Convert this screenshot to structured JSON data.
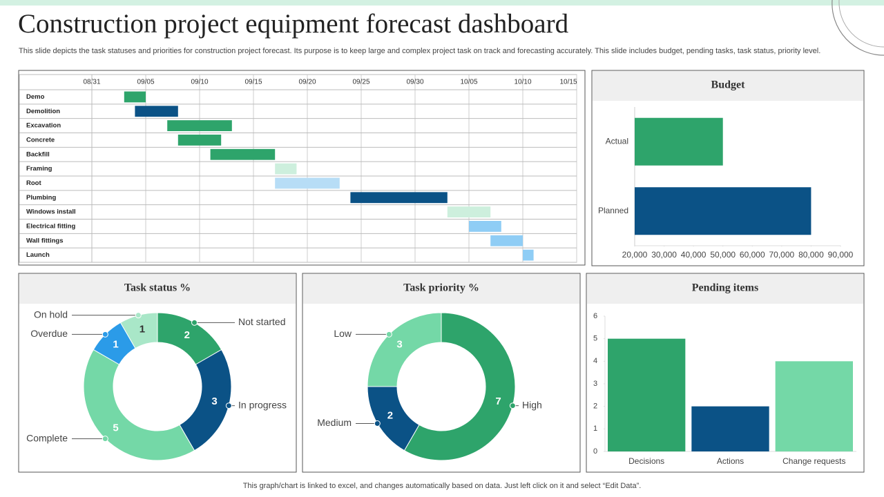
{
  "header": {
    "title": "Construction project equipment forecast dashboard",
    "description": "This slide depicts the task statuses and priorities for construction project forecast. Its purpose is to keep large and complex project task on track and forecasting accurately. This slide includes budget, pending tasks, task status, priority level."
  },
  "footer": "This graph/chart is linked to excel,  and changes automatically based on data. Just left click on it and select “Edit Data”.",
  "chart_data": [
    {
      "type": "gantt",
      "xlim": [
        "08/31",
        "10/15"
      ],
      "xticks": [
        "08/31",
        "09/05",
        "09/10",
        "09/15",
        "09/20",
        "09/25",
        "09/30",
        "10/05",
        "10/10",
        "10/15"
      ],
      "grid": true,
      "tasks": [
        {
          "name": "Demo",
          "start": "09/03",
          "end": "09/05",
          "color": "#2ea46b"
        },
        {
          "name": "Demolition",
          "start": "09/04",
          "end": "09/08",
          "color": "#0b5286"
        },
        {
          "name": "Excavation",
          "start": "09/07",
          "end": "09/13",
          "color": "#2ea46b"
        },
        {
          "name": "Concrete",
          "start": "09/08",
          "end": "09/12",
          "color": "#2ea46b"
        },
        {
          "name": "Backfill",
          "start": "09/11",
          "end": "09/17",
          "color": "#2ea46b"
        },
        {
          "name": "Framing",
          "start": "09/17",
          "end": "09/19",
          "color": "#cdefdd"
        },
        {
          "name": "Root",
          "start": "09/17",
          "end": "09/23",
          "color": "#b7ddf6"
        },
        {
          "name": "Plumbing",
          "start": "09/24",
          "end": "10/03",
          "color": "#0b5286"
        },
        {
          "name": "Windows install",
          "start": "10/03",
          "end": "10/07",
          "color": "#cdefdd"
        },
        {
          "name": "Electrical fitting",
          "start": "10/05",
          "end": "10/08",
          "color": "#8fcdf5"
        },
        {
          "name": "Wall fittings",
          "start": "10/07",
          "end": "10/10",
          "color": "#8fcdf5"
        },
        {
          "name": "Launch",
          "start": "10/10",
          "end": "10/11",
          "color": "#8fcdf5"
        }
      ]
    },
    {
      "type": "hbar",
      "title": "Budget",
      "categories": [
        "Actual",
        "Planned"
      ],
      "values": [
        50000,
        80000
      ],
      "colors": [
        "#2ea46b",
        "#0b5286"
      ],
      "xlim": [
        20000,
        90000
      ],
      "xticks": [
        {
          "value": 20000,
          "label": "20,000"
        },
        {
          "value": 30000,
          "label": "30,000"
        },
        {
          "value": 40000,
          "label": "40,000"
        },
        {
          "value": 50000,
          "label": "50,000"
        },
        {
          "value": 60000,
          "label": "60,000"
        },
        {
          "value": 70000,
          "label": "70,000"
        },
        {
          "value": 80000,
          "label": "80,000"
        },
        {
          "value": 90000,
          "label": "90,000"
        }
      ],
      "grid": false
    },
    {
      "type": "donut",
      "title": "Task status %",
      "categories": [
        "Not started",
        "In progress",
        "Complete",
        "Overdue",
        "On hold"
      ],
      "values": [
        2,
        3,
        5,
        1,
        1
      ],
      "colors": [
        "#2ea46b",
        "#0b5286",
        "#74d8a7",
        "#2b9be8",
        "#a9e7c8"
      ]
    },
    {
      "type": "donut",
      "title": "Task priority %",
      "categories": [
        "High",
        "Medium",
        "Low"
      ],
      "values": [
        7,
        2,
        3
      ],
      "colors": [
        "#2ea46b",
        "#0b5286",
        "#74d8a7"
      ]
    },
    {
      "type": "bar",
      "title": "Pending items",
      "categories": [
        "Decisions",
        "Actions",
        "Change requests"
      ],
      "values": [
        5,
        2,
        4
      ],
      "colors": [
        "#2ea46b",
        "#0b5286",
        "#74d8a7"
      ],
      "ylim": [
        0,
        6
      ],
      "yticks": [
        0,
        1,
        2,
        3,
        4,
        5,
        6
      ],
      "grid": false
    }
  ]
}
